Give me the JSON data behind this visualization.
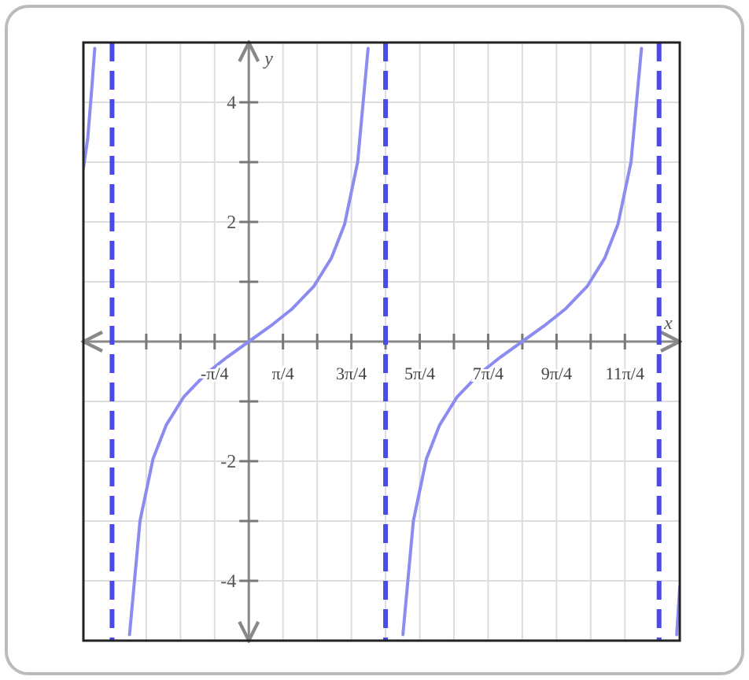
{
  "chart_data": {
    "type": "line",
    "xlabel": "x",
    "ylabel": "y",
    "xlim": [
      -3.8,
      9.9
    ],
    "ylim": [
      -5,
      5
    ],
    "xticks": [
      {
        "value": -2.356,
        "label": null
      },
      {
        "value": -1.571,
        "label": null
      },
      {
        "value": -0.785,
        "label": "-π/4"
      },
      {
        "value": 0.785,
        "label": "π/4"
      },
      {
        "value": 1.571,
        "label": null
      },
      {
        "value": 2.356,
        "label": "3π/4"
      },
      {
        "value": 3.142,
        "label": null
      },
      {
        "value": 3.927,
        "label": "5π/4"
      },
      {
        "value": 4.712,
        "label": null
      },
      {
        "value": 5.498,
        "label": "7π/4"
      },
      {
        "value": 6.283,
        "label": null
      },
      {
        "value": 7.069,
        "label": "9π/4"
      },
      {
        "value": 7.854,
        "label": null
      },
      {
        "value": 8.639,
        "label": "11π/4"
      }
    ],
    "yticks": [
      {
        "value": -4,
        "label": "-4"
      },
      {
        "value": -3,
        "label": null
      },
      {
        "value": -2,
        "label": "-2"
      },
      {
        "value": -1,
        "label": null
      },
      {
        "value": 1,
        "label": null
      },
      {
        "value": 2,
        "label": "2"
      },
      {
        "value": 3,
        "label": null
      },
      {
        "value": 4,
        "label": "4"
      }
    ],
    "grid": true,
    "line_style": "solid",
    "series": [
      {
        "color": "#8c8cf0",
        "x": [
          -3.8,
          -3.7,
          -3.6,
          -3.54,
          -3.1416,
          -2.74,
          -2.5,
          -2.2,
          -1.9,
          -1.5,
          -1,
          -0.5,
          0,
          0.5,
          1,
          1.5,
          1.9,
          2.2,
          2.5,
          2.74,
          3.1416,
          3.54,
          3.78,
          4.08,
          4.38,
          4.78,
          5.28,
          5.78,
          6.28,
          6.78,
          7.28,
          7.78,
          8.18,
          8.48,
          8.78,
          9.02,
          9.4248,
          9.83,
          9.9
        ],
        "values": [
          2.9,
          3.4,
          4.3,
          4.9,
          null,
          -4.9,
          -3.0,
          -1.96,
          -1.4,
          -0.93,
          -0.55,
          -0.26,
          0,
          0.26,
          0.55,
          0.93,
          1.4,
          1.96,
          3.0,
          4.9,
          null,
          -4.9,
          -3.0,
          -1.96,
          -1.4,
          -0.93,
          -0.55,
          -0.26,
          0,
          0.26,
          0.55,
          0.93,
          1.4,
          1.96,
          3.0,
          4.9,
          null,
          -4.9,
          -4.1
        ]
      }
    ],
    "ref_lines": [
      {
        "axis": "x",
        "value": -3.1416,
        "color": "#4a4ae6",
        "line_style": "dashed"
      },
      {
        "axis": "x",
        "value": 3.1416,
        "color": "#4a4ae6",
        "line_style": "dashed"
      },
      {
        "axis": "x",
        "value": 9.4248,
        "color": "#4a4ae6",
        "line_style": "dashed"
      }
    ]
  }
}
